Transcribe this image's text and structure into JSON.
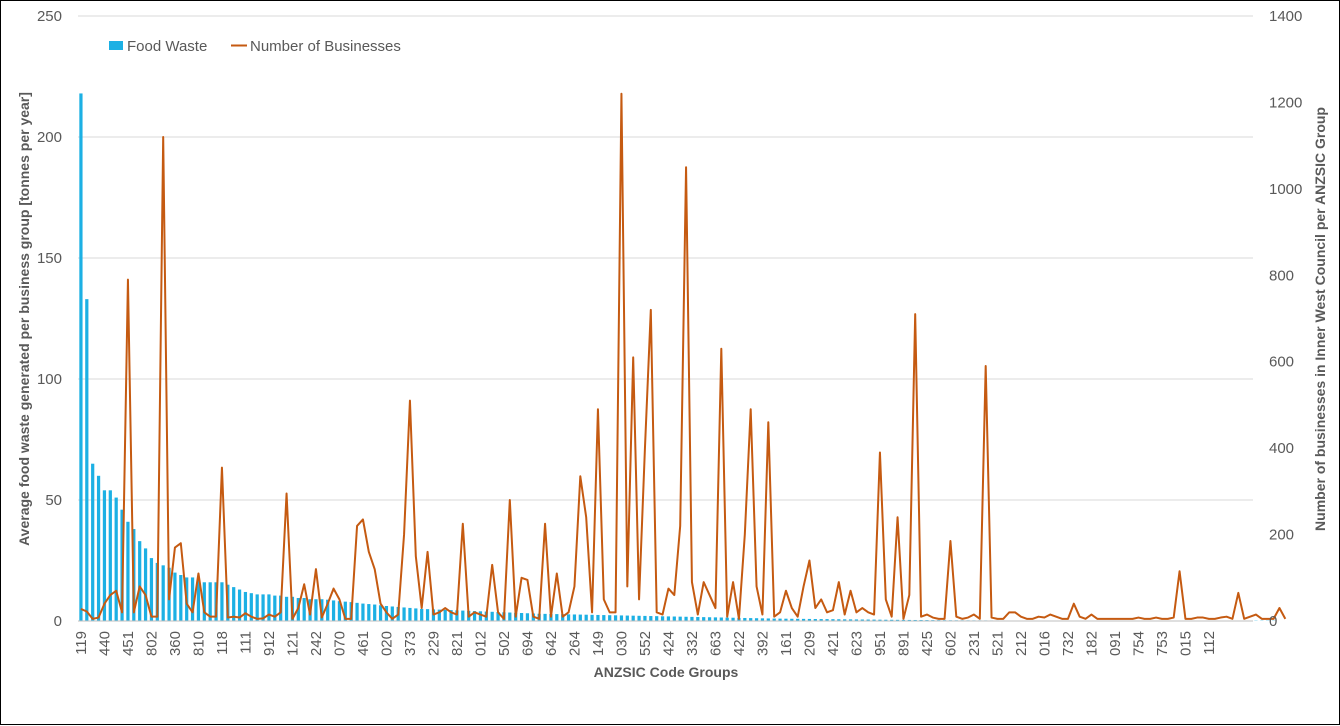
{
  "chart_data": {
    "type": "bar",
    "xlabel": "ANZSIC Code Groups",
    "ylabel": "Average food waste generated per business group [tonnes per year]",
    "y2label": "Number of businesses in Inner West Council per ANZSIC Group",
    "ylim": [
      0,
      250
    ],
    "y2lim": [
      0,
      1400
    ],
    "yticks": [
      0,
      50,
      100,
      150,
      200,
      250
    ],
    "y2ticks": [
      0,
      200,
      400,
      600,
      800,
      1000,
      1200,
      1400
    ],
    "legend_position": "top-left",
    "grid": true,
    "colors": {
      "food_waste": "#1cb0e4",
      "businesses": "#c55a11",
      "grid": "#d9d9d9",
      "text": "#595959"
    },
    "category_count": 200,
    "tick_labels": [
      "119",
      "440",
      "451",
      "802",
      "360",
      "810",
      "118",
      "111",
      "912",
      "121",
      "242",
      "070",
      "461",
      "020",
      "373",
      "229",
      "821",
      "012",
      "502",
      "694",
      "642",
      "264",
      "149",
      "030",
      "552",
      "424",
      "332",
      "663",
      "422",
      "392",
      "161",
      "209",
      "421",
      "623",
      "951",
      "891",
      "425",
      "602",
      "231",
      "521",
      "212",
      "016",
      "732",
      "182",
      "091",
      "754",
      "753",
      "015",
      "112"
    ],
    "series": [
      {
        "name": "Food Waste",
        "type": "bar",
        "axis": "left",
        "values": [
          218,
          133,
          65,
          60,
          54,
          54,
          51,
          46,
          41,
          38,
          33,
          30,
          26,
          24,
          23,
          22,
          20,
          19,
          18,
          18,
          17,
          16,
          16,
          16,
          16,
          15,
          14,
          13,
          12,
          11.5,
          11,
          11,
          11,
          10.5,
          10.5,
          10,
          10,
          9.5,
          9.5,
          9,
          9,
          9,
          8.8,
          8.5,
          8.2,
          8,
          7.8,
          7.5,
          7.2,
          7,
          6.8,
          6.5,
          6.2,
          6,
          5.8,
          5.6,
          5.4,
          5.2,
          5,
          4.9,
          4.8,
          4.7,
          4.6,
          4.5,
          4.4,
          4.3,
          4.2,
          4.1,
          4,
          3.9,
          3.8,
          3.7,
          3.6,
          3.5,
          3.4,
          3.3,
          3.2,
          3.1,
          3,
          2.95,
          2.9,
          2.85,
          2.8,
          2.75,
          2.7,
          2.65,
          2.6,
          2.55,
          2.5,
          2.45,
          2.4,
          2.35,
          2.3,
          2.25,
          2.2,
          2.15,
          2.1,
          2.05,
          2,
          1.95,
          1.9,
          1.85,
          1.8,
          1.75,
          1.7,
          1.65,
          1.6,
          1.55,
          1.5,
          1.45,
          1.4,
          1.35,
          1.3,
          1.25,
          1.2,
          1.15,
          1.1,
          1.05,
          1,
          0.98,
          0.95,
          0.92,
          0.9,
          0.88,
          0.85,
          0.82,
          0.8,
          0.78,
          0.75,
          0.72,
          0.7,
          0.68,
          0.65,
          0.62,
          0.6,
          0.58,
          0.55,
          0.52,
          0.5,
          0.48,
          0.46,
          0.44,
          0.42,
          0.4,
          0.38,
          0.36,
          0.34,
          0.32,
          0.3,
          0.29,
          0.28,
          0.27,
          0.26,
          0.25,
          0.24,
          0.23,
          0.22,
          0.21,
          0.2,
          0.19,
          0.18,
          0.17,
          0.16,
          0.15,
          0.14,
          0.13,
          0.12,
          0.11,
          0.1,
          0.1,
          0.1,
          0.1,
          0.1,
          0.1,
          0.1,
          0.1,
          0.1,
          0.1,
          0.1,
          0.1,
          0.1,
          0.1,
          0.1,
          0.1,
          0.1,
          0.1,
          0.1,
          0.1,
          0.1,
          0.1,
          0.1,
          0.1,
          0.1,
          0.1,
          0.1,
          0.1,
          0.1,
          0.1,
          0.1,
          0.1,
          0.1,
          0.1,
          0.1,
          0.1
        ]
      },
      {
        "name": "Number of Businesses",
        "type": "line",
        "axis": "right",
        "values": [
          28,
          22,
          5,
          8,
          40,
          60,
          70,
          20,
          790,
          20,
          80,
          60,
          10,
          10,
          1120,
          50,
          170,
          180,
          40,
          20,
          110,
          20,
          10,
          10,
          355,
          8,
          10,
          8,
          18,
          10,
          5,
          6,
          15,
          10,
          20,
          295,
          5,
          30,
          85,
          15,
          120,
          8,
          40,
          75,
          50,
          5,
          5,
          220,
          235,
          160,
          120,
          40,
          20,
          5,
          15,
          200,
          510,
          150,
          30,
          160,
          15,
          20,
          30,
          20,
          15,
          225,
          10,
          20,
          15,
          10,
          130,
          20,
          5,
          280,
          10,
          100,
          95,
          10,
          5,
          225,
          10,
          110,
          10,
          20,
          80,
          335,
          240,
          20,
          490,
          50,
          20,
          20,
          1220,
          80,
          610,
          50,
          400,
          720,
          20,
          15,
          75,
          60,
          220,
          1050,
          90,
          15,
          90,
          60,
          30,
          630,
          10,
          90,
          5,
          200,
          490,
          80,
          15,
          460,
          10,
          20,
          70,
          30,
          10,
          80,
          140,
          30,
          50,
          20,
          25,
          90,
          15,
          70,
          20,
          30,
          20,
          15,
          390,
          50,
          10,
          240,
          5,
          60,
          710,
          10,
          15,
          8,
          5,
          5,
          185,
          10,
          5,
          8,
          15,
          5,
          590,
          8,
          5,
          5,
          20,
          20,
          10,
          5,
          5,
          10,
          8,
          15,
          10,
          5,
          5,
          40,
          10,
          5,
          15,
          5,
          5,
          5,
          5,
          5,
          5,
          5,
          8,
          5,
          5,
          8,
          5,
          5,
          8,
          115,
          5,
          5,
          8,
          8,
          5,
          5,
          8,
          10,
          5,
          65,
          5,
          10,
          15,
          5,
          5,
          5,
          30,
          5
        ]
      }
    ]
  }
}
